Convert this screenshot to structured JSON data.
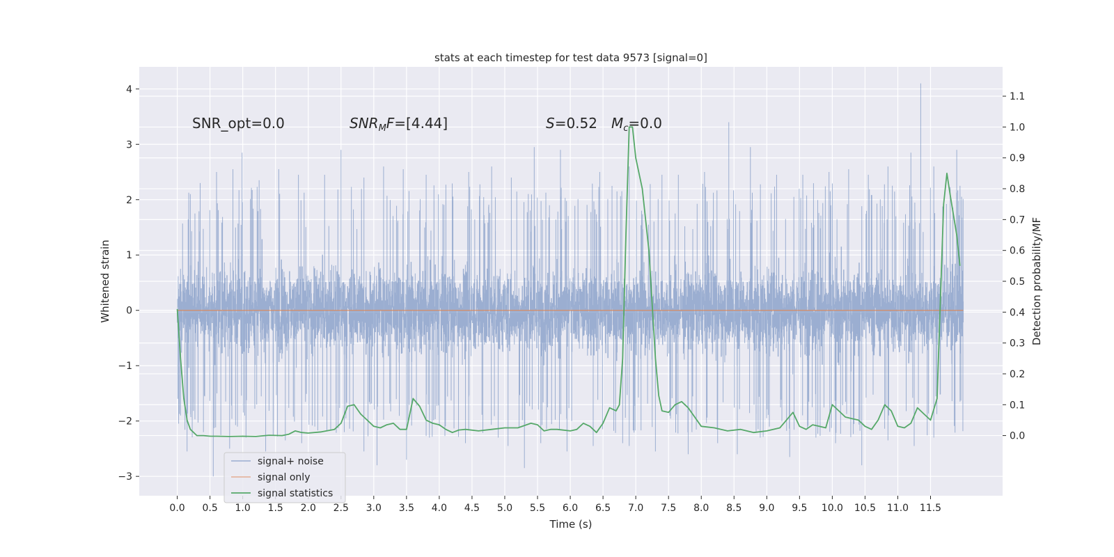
{
  "chart_data": {
    "type": "line",
    "title": "stats at each timestep for test data 9573 [signal=0]",
    "xlabel": "Time (s)",
    "ylabel": "Whitened strain",
    "ylabel_right": "Detection probability/MF",
    "xlim": [
      -0.58,
      12.6
    ],
    "ylim": [
      -3.35,
      4.4
    ],
    "ylim_right": [
      -0.195,
      1.195
    ],
    "x_ticks": [
      "0.0",
      "0.5",
      "1.0",
      "1.5",
      "2.0",
      "2.5",
      "3.0",
      "3.5",
      "4.0",
      "4.5",
      "5.0",
      "5.5",
      "6.0",
      "6.5",
      "7.0",
      "7.5",
      "8.0",
      "8.5",
      "9.0",
      "9.5",
      "10.0",
      "10.5",
      "11.0",
      "11.5"
    ],
    "y_ticks": [
      "−3",
      "−2",
      "−1",
      "0",
      "1",
      "2",
      "3",
      "4"
    ],
    "y_ticks_right": [
      "0.0",
      "0.1",
      "0.2",
      "0.3",
      "0.4",
      "0.5",
      "0.6",
      "0.7",
      "0.8",
      "0.9",
      "1.0",
      "1.1"
    ],
    "grid": true,
    "legend_position": "lower-left",
    "annotations": [
      {
        "id": "snr_opt",
        "text": "SNR_opt=0.0",
        "x": 0.2,
        "y": 3.4
      },
      {
        "id": "snr_mf",
        "text": "SNR_MF=[4.44]",
        "x": 2.6,
        "y": 3.4
      },
      {
        "id": "s",
        "text": "S=0.52",
        "x": 5.6,
        "y": 3.4
      },
      {
        "id": "mc",
        "text": "M_c=0.0",
        "x": 6.6,
        "y": 3.4
      }
    ],
    "series": [
      {
        "name": "signal+ noise",
        "color": "#4c72b0",
        "axis": "left",
        "time_range": [
          0.0,
          12.0
        ],
        "envelope_typical": [
          -1.6,
          1.5
        ],
        "peaks_high": [
          [
            0.05,
            0.75
          ],
          [
            0.2,
            2.1
          ],
          [
            0.35,
            2.3
          ],
          [
            0.6,
            2.5
          ],
          [
            0.85,
            2.55
          ],
          [
            0.99,
            2.85
          ],
          [
            1.25,
            2.35
          ],
          [
            1.55,
            2.55
          ],
          [
            1.85,
            2.45
          ],
          [
            2.25,
            2.45
          ],
          [
            2.5,
            2.9
          ],
          [
            2.85,
            2.4
          ],
          [
            3.15,
            2.6
          ],
          [
            3.45,
            2.55
          ],
          [
            3.8,
            2.45
          ],
          [
            4.45,
            2.5
          ],
          [
            4.8,
            2.6
          ],
          [
            5.1,
            2.4
          ],
          [
            5.45,
            2.95
          ],
          [
            5.85,
            2.9
          ],
          [
            6.45,
            2.5
          ],
          [
            6.9,
            2.6
          ],
          [
            7.4,
            2.45
          ],
          [
            7.65,
            2.45
          ],
          [
            8.05,
            2.5
          ],
          [
            8.42,
            3.4
          ],
          [
            8.75,
            2.95
          ],
          [
            9.15,
            2.45
          ],
          [
            9.55,
            2.45
          ],
          [
            9.95,
            2.5
          ],
          [
            10.25,
            2.55
          ],
          [
            10.55,
            2.45
          ],
          [
            10.85,
            2.6
          ],
          [
            11.2,
            2.85
          ],
          [
            11.35,
            4.1
          ],
          [
            11.55,
            2.6
          ],
          [
            11.9,
            2.9
          ],
          [
            11.95,
            2.25
          ]
        ],
        "peaks_low": [
          [
            0.05,
            -1.9
          ],
          [
            0.15,
            -2.55
          ],
          [
            0.4,
            -2.2
          ],
          [
            0.55,
            -3.0
          ],
          [
            0.8,
            -2.5
          ],
          [
            1.05,
            -2.3
          ],
          [
            1.35,
            -2.55
          ],
          [
            1.65,
            -2.35
          ],
          [
            1.9,
            -2.4
          ],
          [
            2.1,
            -2.1
          ],
          [
            2.55,
            -2.2
          ],
          [
            2.85,
            -2.55
          ],
          [
            3.05,
            -2.8
          ],
          [
            3.5,
            -2.7
          ],
          [
            3.85,
            -2.3
          ],
          [
            4.4,
            -2.4
          ],
          [
            4.9,
            -2.3
          ],
          [
            5.05,
            -2.45
          ],
          [
            5.3,
            -2.85
          ],
          [
            5.55,
            -2.4
          ],
          [
            5.95,
            -2.55
          ],
          [
            6.35,
            -2.45
          ],
          [
            6.8,
            -2.4
          ],
          [
            6.9,
            -2.45
          ],
          [
            7.3,
            -2.55
          ],
          [
            7.8,
            -2.6
          ],
          [
            8.25,
            -2.4
          ],
          [
            8.55,
            -2.6
          ],
          [
            8.9,
            -2.3
          ],
          [
            9.35,
            -2.65
          ],
          [
            9.75,
            -2.3
          ],
          [
            10.05,
            -2.4
          ],
          [
            10.45,
            -2.8
          ],
          [
            10.85,
            -2.35
          ],
          [
            11.25,
            -2.45
          ],
          [
            11.55,
            -2.3
          ],
          [
            11.95,
            -1.65
          ]
        ]
      },
      {
        "name": "signal only",
        "color": "#dd8452",
        "axis": "left",
        "x": [
          0.0,
          12.0
        ],
        "y": [
          0.0,
          0.0
        ]
      },
      {
        "name": "signal statistics",
        "color": "#55a868",
        "axis": "right",
        "x": [
          0.0,
          0.05,
          0.1,
          0.15,
          0.2,
          0.3,
          0.4,
          0.5,
          0.6,
          0.8,
          1.0,
          1.2,
          1.4,
          1.6,
          1.7,
          1.8,
          1.9,
          2.0,
          2.2,
          2.4,
          2.5,
          2.6,
          2.7,
          2.8,
          2.9,
          3.0,
          3.1,
          3.2,
          3.3,
          3.4,
          3.5,
          3.6,
          3.7,
          3.8,
          3.9,
          4.0,
          4.1,
          4.2,
          4.3,
          4.4,
          4.6,
          4.8,
          5.0,
          5.2,
          5.4,
          5.5,
          5.6,
          5.7,
          5.8,
          6.0,
          6.1,
          6.2,
          6.3,
          6.4,
          6.5,
          6.6,
          6.7,
          6.75,
          6.8,
          6.85,
          6.9,
          6.95,
          7.0,
          7.1,
          7.2,
          7.3,
          7.35,
          7.4,
          7.5,
          7.6,
          7.7,
          7.8,
          7.9,
          8.0,
          8.2,
          8.4,
          8.6,
          8.8,
          9.0,
          9.2,
          9.3,
          9.4,
          9.5,
          9.6,
          9.7,
          9.8,
          9.9,
          10.0,
          10.1,
          10.2,
          10.3,
          10.4,
          10.5,
          10.6,
          10.7,
          10.8,
          10.9,
          11.0,
          11.1,
          11.2,
          11.3,
          11.4,
          11.5,
          11.6,
          11.7,
          11.75,
          11.8,
          11.9,
          11.95
        ],
        "y": [
          0.41,
          0.25,
          0.12,
          0.05,
          0.02,
          0.0,
          0.0,
          -0.002,
          -0.002,
          -0.003,
          -0.002,
          -0.003,
          0.001,
          0.0,
          0.004,
          0.015,
          0.01,
          0.008,
          0.012,
          0.02,
          0.04,
          0.095,
          0.1,
          0.07,
          0.05,
          0.03,
          0.025,
          0.035,
          0.04,
          0.02,
          0.02,
          0.12,
          0.095,
          0.05,
          0.04,
          0.035,
          0.02,
          0.01,
          0.018,
          0.02,
          0.015,
          0.02,
          0.025,
          0.025,
          0.04,
          0.035,
          0.015,
          0.02,
          0.02,
          0.015,
          0.02,
          0.04,
          0.03,
          0.01,
          0.04,
          0.09,
          0.08,
          0.1,
          0.25,
          0.65,
          1.0,
          1.0,
          0.9,
          0.8,
          0.6,
          0.25,
          0.13,
          0.08,
          0.075,
          0.1,
          0.11,
          0.09,
          0.06,
          0.03,
          0.025,
          0.015,
          0.02,
          0.01,
          0.015,
          0.025,
          0.05,
          0.075,
          0.03,
          0.02,
          0.035,
          0.03,
          0.025,
          0.1,
          0.08,
          0.06,
          0.055,
          0.05,
          0.03,
          0.02,
          0.05,
          0.1,
          0.08,
          0.03,
          0.025,
          0.04,
          0.09,
          0.07,
          0.05,
          0.12,
          0.75,
          0.85,
          0.78,
          0.65,
          0.55
        ]
      }
    ]
  }
}
